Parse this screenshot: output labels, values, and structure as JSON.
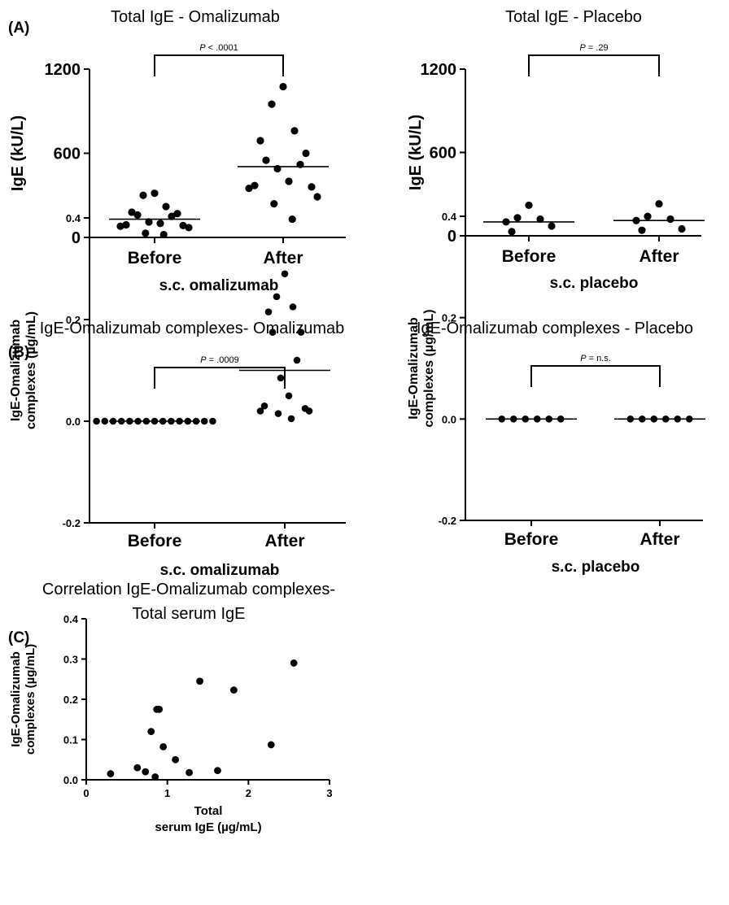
{
  "chart_data": [
    {
      "id": "A1",
      "panel_label": "(A)",
      "type": "scatter",
      "title": "Total IgE - Omalizumab",
      "ylabel": "IgE (kU/L)",
      "xlabel": "s.c. omalizumab",
      "ylim": [
        0,
        1200
      ],
      "yticks": [
        0,
        600,
        1200
      ],
      "yticklabels": [
        "0",
        "600",
        "1200"
      ],
      "categories": [
        "Before",
        "After"
      ],
      "groups": [
        {
          "category": "Before",
          "values": [
            315,
            300,
            220,
            180,
            170,
            160,
            150,
            110,
            100,
            90,
            85,
            80,
            70,
            30,
            20
          ],
          "median": 130
        },
        {
          "category": "After",
          "values": [
            1075,
            950,
            760,
            690,
            600,
            550,
            520,
            490,
            400,
            370,
            360,
            350,
            290,
            240,
            130
          ],
          "median": 505
        }
      ],
      "p_label": "P",
      "p_value": "< .0001"
    },
    {
      "id": "A2",
      "panel_label": "",
      "type": "scatter",
      "title": "Total IgE - Placebo",
      "ylabel": "IgE (kU/L)",
      "xlabel": "s.c. placebo",
      "ylim": [
        0,
        1200
      ],
      "yticks": [
        0,
        600,
        1200
      ],
      "yticklabels": [
        "0",
        "600",
        "1200"
      ],
      "categories": [
        "Before",
        "After"
      ],
      "groups": [
        {
          "category": "Before",
          "values": [
            220,
            130,
            120,
            100,
            70,
            30
          ],
          "median": 100
        },
        {
          "category": "After",
          "values": [
            230,
            140,
            120,
            110,
            50,
            40
          ],
          "median": 110
        }
      ],
      "p_label": "P",
      "p_value": "= .29"
    },
    {
      "id": "B1",
      "panel_label": "(B)",
      "type": "scatter",
      "title": "IgE-Omalizumab complexes- Omalizumab",
      "ylabel": "IgE-Omalizumab complexes (µg/mL)",
      "xlabel": "s.c. omalizumab",
      "ylim": [
        -0.2,
        0.4
      ],
      "yticks": [
        -0.2,
        0.0,
        0.2,
        0.4
      ],
      "yticklabels": [
        "-0.2",
        "0.0",
        "0.2",
        "0.4"
      ],
      "categories": [
        "Before",
        "After"
      ],
      "groups": [
        {
          "category": "Before",
          "values": [
            0,
            0,
            0,
            0,
            0,
            0,
            0,
            0,
            0,
            0,
            0,
            0,
            0,
            0,
            0
          ],
          "median": 0
        },
        {
          "category": "After",
          "values": [
            0.29,
            0.245,
            0.225,
            0.215,
            0.175,
            0.175,
            0.12,
            0.085,
            0.05,
            0.03,
            0.025,
            0.02,
            0.02,
            0.015,
            0.005
          ],
          "median": 0.1
        }
      ],
      "p_label": "P",
      "p_value": "= .0009"
    },
    {
      "id": "B2",
      "panel_label": "",
      "type": "scatter",
      "title": "IgE-Omalizumab complexes - Placebo",
      "ylabel": "IgE-Omalizumab complexes (µg/mL)",
      "xlabel": "s.c. placebo",
      "ylim": [
        -0.2,
        0.4
      ],
      "yticks": [
        -0.2,
        0.0,
        0.2,
        0.4
      ],
      "yticklabels": [
        "-0.2",
        "0.0",
        "0.2",
        "0.4"
      ],
      "categories": [
        "Before",
        "After"
      ],
      "groups": [
        {
          "category": "Before",
          "values": [
            0,
            0,
            0,
            0,
            0,
            0
          ],
          "median": 0
        },
        {
          "category": "After",
          "values": [
            0,
            0,
            0,
            0,
            0,
            0
          ],
          "median": 0
        }
      ],
      "p_label": "P",
      "p_value": "= n.s."
    },
    {
      "id": "C",
      "panel_label": "(C)",
      "type": "scatter",
      "title": "Correlation IgE-Omalizumab complexes-",
      "title_line2": "Total serum IgE",
      "ylabel": "IgE-Omalizumab complexes (µg/mL)",
      "xlabel": "Total",
      "xlabel_line2": "serum IgE (µg/mL)",
      "xlim": [
        0,
        3
      ],
      "ylim": [
        0,
        0.4
      ],
      "xticks": [
        0,
        1,
        2,
        3
      ],
      "xticklabels": [
        "0",
        "1",
        "2",
        "3"
      ],
      "yticks": [
        0,
        0.1,
        0.2,
        0.3,
        0.4
      ],
      "yticklabels": [
        "0.0",
        "0.1",
        "0.2",
        "0.3",
        "0.4"
      ],
      "x": [
        0.3,
        0.63,
        0.73,
        0.8,
        0.85,
        0.87,
        0.9,
        0.95,
        1.1,
        1.27,
        1.4,
        1.62,
        1.82,
        2.28,
        2.56
      ],
      "y": [
        0.015,
        0.03,
        0.02,
        0.12,
        0.007,
        0.175,
        0.175,
        0.082,
        0.05,
        0.018,
        0.245,
        0.023,
        0.223,
        0.087,
        0.29
      ]
    }
  ]
}
